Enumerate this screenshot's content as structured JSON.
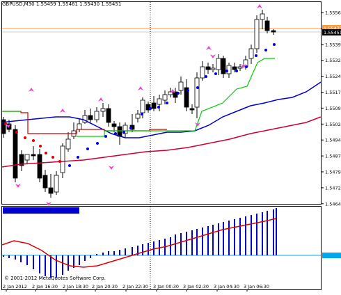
{
  "chart": {
    "symbol_timeframe": "GBPUSD,M30",
    "ohlc": "1.55459 1.55461 1.55430 1.55451",
    "copyright": "© 2001-2012 MetaQuotes Software Corp.",
    "badge_top": "1.55473",
    "badge_current": "1.55451",
    "price_axis": [
      "1.55565",
      "1.55480",
      "1.55395",
      "1.55320",
      "1.55245",
      "1.55170",
      "1.55095",
      "1.55020",
      "1.54945",
      "1.54870",
      "1.54795",
      "1.54720",
      "1.54645"
    ],
    "time_axis": [
      "2 Jan 2012",
      "2 Jan 16:30",
      "2 Jan 18:30",
      "2 Jan 20:30",
      "2 Jan 22:30",
      "3 Jan 00:30",
      "3 Jan 02:30",
      "3 Jan 04:30",
      "3 Jan 06:30"
    ],
    "colors": {
      "bull_candle": "#ffffff",
      "bear_candle": "#000000",
      "blue_ma": "#0000cc",
      "red_ma": "#cc0033",
      "green_trail": "#00cc00",
      "red_step": "#cc0000",
      "fractal": "#ee44cc",
      "histogram": "#0000cc",
      "signal_line": "#dd0000",
      "zero_line": "#00aaee",
      "bid_line": "#ff9933"
    },
    "icons": [
      "fractal-up-arrow-icon",
      "fractal-down-arrow-icon",
      "psar-dot-icon"
    ]
  }
}
